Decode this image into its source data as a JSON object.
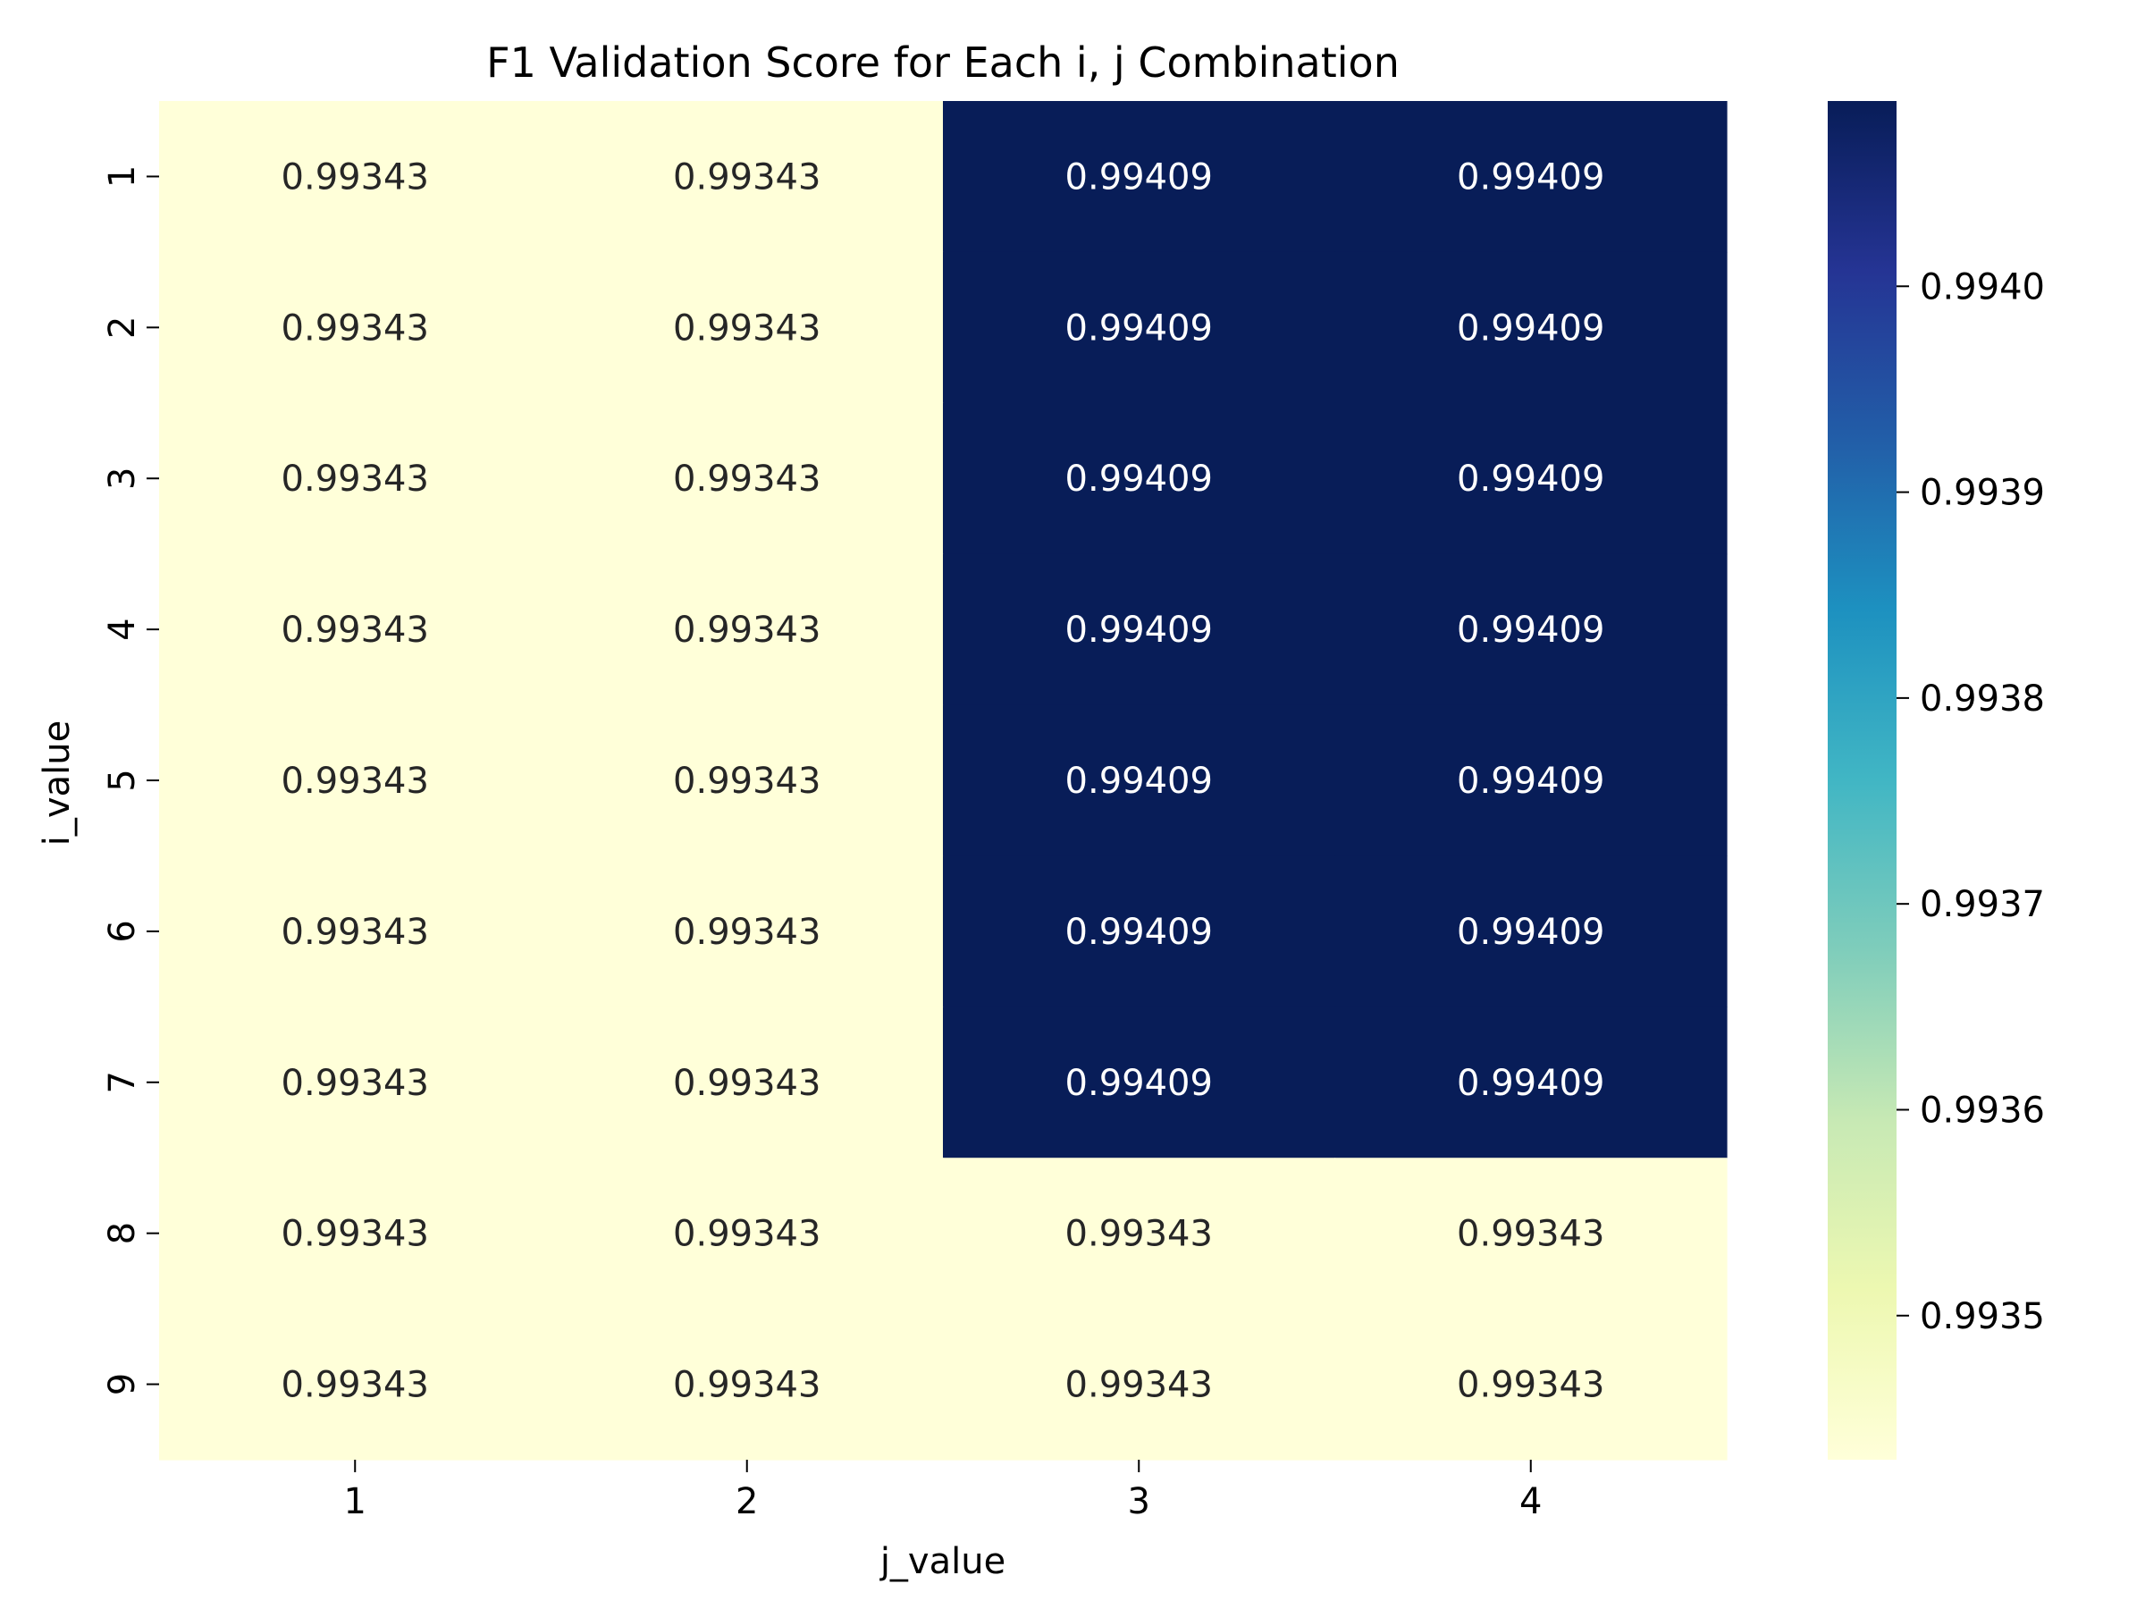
{
  "chart_data": {
    "type": "heatmap",
    "title": "F1 Validation Score for Each i, j Combination",
    "xlabel": "j_value",
    "ylabel": "i_value",
    "x_categories": [
      "1",
      "2",
      "3",
      "4"
    ],
    "y_categories": [
      "1",
      "2",
      "3",
      "4",
      "5",
      "6",
      "7",
      "8",
      "9"
    ],
    "values": [
      [
        0.99343,
        0.99343,
        0.99409,
        0.99409
      ],
      [
        0.99343,
        0.99343,
        0.99409,
        0.99409
      ],
      [
        0.99343,
        0.99343,
        0.99409,
        0.99409
      ],
      [
        0.99343,
        0.99343,
        0.99409,
        0.99409
      ],
      [
        0.99343,
        0.99343,
        0.99409,
        0.99409
      ],
      [
        0.99343,
        0.99343,
        0.99409,
        0.99409
      ],
      [
        0.99343,
        0.99343,
        0.99409,
        0.99409
      ],
      [
        0.99343,
        0.99343,
        0.99343,
        0.99343
      ],
      [
        0.99343,
        0.99343,
        0.99343,
        0.99343
      ]
    ],
    "value_labels": [
      [
        "0.99343",
        "0.99343",
        "0.99409",
        "0.99409"
      ],
      [
        "0.99343",
        "0.99343",
        "0.99409",
        "0.99409"
      ],
      [
        "0.99343",
        "0.99343",
        "0.99409",
        "0.99409"
      ],
      [
        "0.99343",
        "0.99343",
        "0.99409",
        "0.99409"
      ],
      [
        "0.99343",
        "0.99343",
        "0.99409",
        "0.99409"
      ],
      [
        "0.99343",
        "0.99343",
        "0.99409",
        "0.99409"
      ],
      [
        "0.99343",
        "0.99343",
        "0.99409",
        "0.99409"
      ],
      [
        "0.99343",
        "0.99343",
        "0.99343",
        "0.99343"
      ],
      [
        "0.99343",
        "0.99343",
        "0.99343",
        "0.99343"
      ]
    ],
    "colormap": "YlGnBu",
    "colormap_stops": [
      "#ffffd9",
      "#edf8b1",
      "#c7e9b4",
      "#7fcdbb",
      "#41b6c4",
      "#1d91c0",
      "#225ea8",
      "#253494",
      "#081d58"
    ],
    "low_color": "#ffffd9",
    "high_color": "#081d58",
    "vmin": 0.99343,
    "vmax": 0.99409,
    "colorbar_ticks": [
      0.9935,
      0.9936,
      0.9937,
      0.9938,
      0.9939,
      0.994
    ],
    "colorbar_tick_labels": [
      "0.9935",
      "0.9936",
      "0.9937",
      "0.9938",
      "0.9939",
      "0.9940"
    ],
    "dark_text_color": "#262626",
    "light_text_color": "#ffffff",
    "grid": false
  }
}
